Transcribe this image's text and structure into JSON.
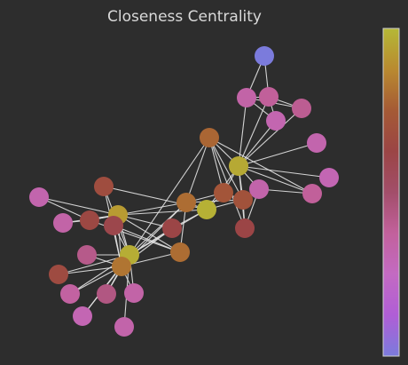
{
  "title": "Closeness Centrality",
  "colormap": {
    "name": "closeness",
    "stops": [
      "#7b7bdc",
      "#b05ed6",
      "#c36ac2",
      "#c2619c",
      "#a24e6a",
      "#9b4545",
      "#a55a35",
      "#b98a30",
      "#b5b836"
    ]
  },
  "nodes": [
    {
      "id": 0,
      "value": 0.0
    },
    {
      "id": 1,
      "value": 0.34
    },
    {
      "id": 2,
      "value": 0.38
    },
    {
      "id": 3,
      "value": 0.4
    },
    {
      "id": 4,
      "value": 0.31
    },
    {
      "id": 5,
      "value": 0.32
    },
    {
      "id": 6,
      "value": 0.96
    },
    {
      "id": 7,
      "value": 0.3
    },
    {
      "id": 8,
      "value": 0.38
    },
    {
      "id": 9,
      "value": 0.33
    },
    {
      "id": 10,
      "value": 0.72
    },
    {
      "id": 11,
      "value": 0.7
    },
    {
      "id": 12,
      "value": 0.62
    },
    {
      "id": 13,
      "value": 0.78
    },
    {
      "id": 14,
      "value": 0.98
    },
    {
      "id": 15,
      "value": 0.8
    },
    {
      "id": 16,
      "value": 0.62
    },
    {
      "id": 17,
      "value": 0.8
    },
    {
      "id": 18,
      "value": 0.67
    },
    {
      "id": 19,
      "value": 0.32
    },
    {
      "id": 20,
      "value": 0.34
    },
    {
      "id": 21,
      "value": 0.64
    },
    {
      "id": 22,
      "value": 0.92
    },
    {
      "id": 23,
      "value": 0.6
    },
    {
      "id": 24,
      "value": 0.97
    },
    {
      "id": 25,
      "value": 0.82
    },
    {
      "id": 26,
      "value": 0.42
    },
    {
      "id": 27,
      "value": 0.66
    },
    {
      "id": 28,
      "value": 0.36
    },
    {
      "id": 29,
      "value": 0.44
    },
    {
      "id": 30,
      "value": 0.34
    },
    {
      "id": 31,
      "value": 0.3
    },
    {
      "id": 32,
      "value": 0.33
    }
  ],
  "edges": [
    [
      0,
      1
    ],
    [
      0,
      2
    ],
    [
      1,
      2
    ],
    [
      1,
      3
    ],
    [
      2,
      3
    ],
    [
      1,
      4
    ],
    [
      2,
      4
    ],
    [
      4,
      6
    ],
    [
      1,
      6
    ],
    [
      2,
      6
    ],
    [
      3,
      6
    ],
    [
      5,
      6
    ],
    [
      7,
      6
    ],
    [
      8,
      6
    ],
    [
      9,
      6
    ],
    [
      6,
      10
    ],
    [
      6,
      11
    ],
    [
      6,
      12
    ],
    [
      6,
      13
    ],
    [
      10,
      11
    ],
    [
      10,
      13
    ],
    [
      11,
      13
    ],
    [
      11,
      12
    ],
    [
      12,
      13
    ],
    [
      12,
      9
    ],
    [
      13,
      8
    ],
    [
      8,
      9
    ],
    [
      10,
      14
    ],
    [
      6,
      14
    ],
    [
      11,
      14
    ],
    [
      14,
      15
    ],
    [
      14,
      16
    ],
    [
      13,
      15
    ],
    [
      15,
      17
    ],
    [
      15,
      22
    ],
    [
      14,
      22
    ],
    [
      14,
      18
    ],
    [
      10,
      15
    ],
    [
      11,
      15
    ],
    [
      17,
      23
    ],
    [
      17,
      25
    ],
    [
      15,
      25
    ],
    [
      18,
      24
    ],
    [
      16,
      24
    ],
    [
      16,
      22
    ],
    [
      17,
      22
    ],
    [
      22,
      21
    ],
    [
      22,
      20
    ],
    [
      22,
      19
    ],
    [
      21,
      22
    ],
    [
      17,
      21
    ],
    [
      20,
      21
    ],
    [
      19,
      21
    ],
    [
      24,
      25
    ],
    [
      24,
      26
    ],
    [
      24,
      27
    ],
    [
      24,
      28
    ],
    [
      24,
      29
    ],
    [
      24,
      30
    ],
    [
      24,
      31
    ],
    [
      24,
      32
    ],
    [
      25,
      26
    ],
    [
      25,
      27
    ],
    [
      25,
      28
    ],
    [
      25,
      29
    ],
    [
      25,
      30
    ],
    [
      25,
      31
    ],
    [
      23,
      24
    ],
    [
      23,
      25
    ],
    [
      22,
      24
    ],
    [
      22,
      25
    ],
    [
      13,
      24
    ],
    [
      15,
      24
    ],
    [
      16,
      25
    ],
    [
      14,
      24
    ],
    [
      18,
      25
    ]
  ]
}
